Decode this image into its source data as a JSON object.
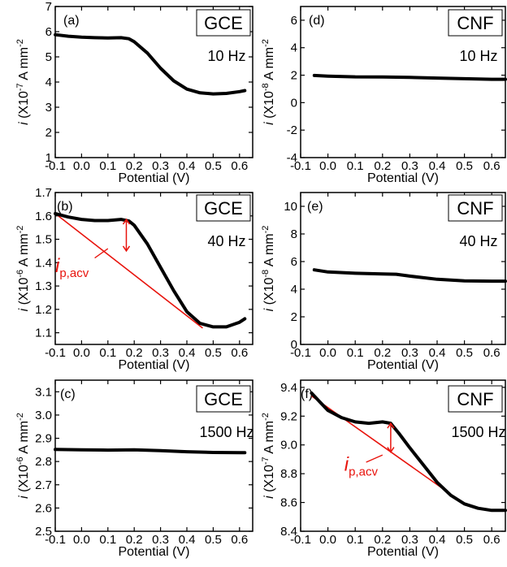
{
  "figure": {
    "colors": {
      "data": "#000000",
      "annotation": "#e8130c",
      "axis": "#000000"
    }
  },
  "chart_data": [
    {
      "id": "a",
      "type": "line",
      "letter": "(a)",
      "electrode": "GCE",
      "frequency": "10 Hz",
      "xlabel": "Potential (V)",
      "ylabel_prefix": "i",
      "ylabel_rest": " (X10",
      "ylabel_exp": "-7",
      "ylabel_unit": " A mm",
      "ylabel_unit_exp": "-2",
      "xlim": [
        -0.1,
        0.65
      ],
      "ylim": [
        1,
        7
      ],
      "xticks": [
        "-0.1",
        "0.0",
        "0.1",
        "0.2",
        "0.3",
        "0.4",
        "0.5",
        "0.6"
      ],
      "xtick_values": [
        -0.1,
        0.0,
        0.1,
        0.2,
        0.3,
        0.4,
        0.5,
        0.6
      ],
      "yticks": [
        "1",
        "2",
        "3",
        "4",
        "5",
        "6",
        "7"
      ],
      "ytick_values": [
        1,
        2,
        3,
        4,
        5,
        6,
        7
      ],
      "series": [
        {
          "x": [
            -0.1,
            -0.05,
            0.0,
            0.05,
            0.1,
            0.15,
            0.18,
            0.2,
            0.25,
            0.3,
            0.35,
            0.4,
            0.45,
            0.5,
            0.55,
            0.6,
            0.62
          ],
          "y": [
            5.88,
            5.82,
            5.78,
            5.76,
            5.75,
            5.76,
            5.72,
            5.6,
            5.15,
            4.55,
            4.05,
            3.72,
            3.57,
            3.53,
            3.55,
            3.62,
            3.66
          ]
        }
      ]
    },
    {
      "id": "b",
      "type": "line",
      "letter": "(b)",
      "electrode": "GCE",
      "frequency": "40 Hz",
      "xlabel": "Potential (V)",
      "ylabel_prefix": "i",
      "ylabel_rest": " (X10",
      "ylabel_exp": "-6",
      "ylabel_unit": " A mm",
      "ylabel_unit_exp": "-2",
      "xlim": [
        -0.1,
        0.65
      ],
      "ylim": [
        1.05,
        1.7
      ],
      "xticks": [
        "-0.1",
        "0.0",
        "0.1",
        "0.2",
        "0.3",
        "0.4",
        "0.5",
        "0.6"
      ],
      "xtick_values": [
        -0.1,
        0.0,
        0.1,
        0.2,
        0.3,
        0.4,
        0.5,
        0.6
      ],
      "yticks": [
        "1.1",
        "1.2",
        "1.3",
        "1.4",
        "1.5",
        "1.6",
        "1.7"
      ],
      "ytick_values": [
        1.1,
        1.2,
        1.3,
        1.4,
        1.5,
        1.6,
        1.7
      ],
      "series": [
        {
          "x": [
            -0.1,
            -0.05,
            0.0,
            0.05,
            0.1,
            0.15,
            0.18,
            0.2,
            0.25,
            0.3,
            0.35,
            0.4,
            0.45,
            0.5,
            0.55,
            0.6,
            0.62
          ],
          "y": [
            1.61,
            1.595,
            1.585,
            1.58,
            1.58,
            1.585,
            1.578,
            1.56,
            1.48,
            1.38,
            1.28,
            1.19,
            1.14,
            1.125,
            1.125,
            1.145,
            1.16
          ]
        }
      ],
      "baseline": {
        "x": [
          -0.1,
          0.46
        ],
        "y": [
          1.61,
          1.12
        ]
      },
      "peak_arrow": {
        "x": 0.17,
        "y_from": 1.585,
        "y_to": 1.45
      },
      "label_pointer": {
        "x": [
          0.05,
          0.1
        ],
        "y": [
          1.42,
          1.46
        ]
      },
      "annotation": {
        "main": "i",
        "sub": "p,acv",
        "x": -0.1,
        "y": 1.36
      }
    },
    {
      "id": "c",
      "type": "line",
      "letter": "(c)",
      "electrode": "GCE",
      "frequency": "1500 Hz",
      "xlabel": "Potential (V)",
      "ylabel_prefix": "i",
      "ylabel_rest": " (X10",
      "ylabel_exp": "-6",
      "ylabel_unit": " A mm",
      "ylabel_unit_exp": "-2",
      "xlim": [
        -0.1,
        0.65
      ],
      "ylim": [
        2.5,
        3.15
      ],
      "xticks": [
        "-0.1",
        "0.0",
        "0.1",
        "0.2",
        "0.3",
        "0.4",
        "0.5",
        "0.6"
      ],
      "xtick_values": [
        -0.1,
        0.0,
        0.1,
        0.2,
        0.3,
        0.4,
        0.5,
        0.6
      ],
      "yticks": [
        "2.5",
        "2.6",
        "2.7",
        "2.8",
        "2.9",
        "3.0",
        "3.1"
      ],
      "ytick_values": [
        2.5,
        2.6,
        2.7,
        2.8,
        2.9,
        3.0,
        3.1
      ],
      "series": [
        {
          "x": [
            -0.1,
            0.0,
            0.1,
            0.2,
            0.3,
            0.4,
            0.5,
            0.6,
            0.62
          ],
          "y": [
            2.852,
            2.85,
            2.849,
            2.85,
            2.847,
            2.842,
            2.839,
            2.838,
            2.838
          ]
        }
      ]
    },
    {
      "id": "d",
      "type": "line",
      "letter": "(d)",
      "electrode": "CNF",
      "frequency": "10 Hz",
      "xlabel": "Potential (V)",
      "ylabel_prefix": "i",
      "ylabel_rest": " (X10",
      "ylabel_exp": "-8",
      "ylabel_unit": " A mm",
      "ylabel_unit_exp": "-2",
      "xlim": [
        -0.1,
        0.65
      ],
      "ylim": [
        -4,
        7
      ],
      "xticks": [
        "-0.1",
        "0.0",
        "0.1",
        "0.2",
        "0.3",
        "0.4",
        "0.5",
        "0.6"
      ],
      "xtick_values": [
        -0.1,
        0.0,
        0.1,
        0.2,
        0.3,
        0.4,
        0.5,
        0.6
      ],
      "yticks": [
        "-4",
        "-2",
        "0",
        "2",
        "4",
        "6"
      ],
      "ytick_values": [
        -4,
        -2,
        0,
        2,
        4,
        6
      ],
      "series": [
        {
          "x": [
            -0.05,
            0.0,
            0.1,
            0.2,
            0.3,
            0.4,
            0.5,
            0.6,
            0.65
          ],
          "y": [
            1.98,
            1.93,
            1.88,
            1.87,
            1.84,
            1.79,
            1.74,
            1.7,
            1.7
          ]
        }
      ]
    },
    {
      "id": "e",
      "type": "line",
      "letter": "(e)",
      "electrode": "CNF",
      "frequency": "40 Hz",
      "xlabel": "Potential (V)",
      "ylabel_prefix": "i",
      "ylabel_rest": " (X10",
      "ylabel_exp": "-8",
      "ylabel_unit": " A mm",
      "ylabel_unit_exp": "-2",
      "xlim": [
        -0.1,
        0.65
      ],
      "ylim": [
        0,
        11
      ],
      "xticks": [
        "-0.1",
        "0.0",
        "0.1",
        "0.2",
        "0.3",
        "0.4",
        "0.5",
        "0.6"
      ],
      "xtick_values": [
        -0.1,
        0.0,
        0.1,
        0.2,
        0.3,
        0.4,
        0.5,
        0.6
      ],
      "yticks": [
        "0",
        "2",
        "4",
        "6",
        "8",
        "10"
      ],
      "ytick_values": [
        0,
        2,
        4,
        6,
        8,
        10
      ],
      "series": [
        {
          "x": [
            -0.05,
            0.0,
            0.1,
            0.2,
            0.25,
            0.3,
            0.4,
            0.5,
            0.6,
            0.65
          ],
          "y": [
            5.4,
            5.25,
            5.15,
            5.1,
            5.08,
            4.95,
            4.72,
            4.6,
            4.58,
            4.58
          ]
        }
      ]
    },
    {
      "id": "f",
      "type": "line",
      "letter": "(f)",
      "electrode": "CNF",
      "frequency": "1500 Hz",
      "xlabel": "Potential (V)",
      "ylabel_prefix": "i",
      "ylabel_rest": " (X10",
      "ylabel_exp": "-7",
      "ylabel_unit": " A mm",
      "ylabel_unit_exp": "-2",
      "xlim": [
        -0.1,
        0.65
      ],
      "ylim": [
        8.4,
        9.45
      ],
      "xticks": [
        "-0.1",
        "0.0",
        "0.1",
        "0.2",
        "0.3",
        "0.4",
        "0.5",
        "0.6"
      ],
      "xtick_values": [
        -0.1,
        0.0,
        0.1,
        0.2,
        0.3,
        0.4,
        0.5,
        0.6
      ],
      "yticks": [
        "8.4",
        "8.6",
        "8.8",
        "9.0",
        "9.2",
        "9.4"
      ],
      "ytick_values": [
        8.4,
        8.6,
        8.8,
        9.0,
        9.2,
        9.4
      ],
      "series": [
        {
          "x": [
            -0.06,
            -0.03,
            0.0,
            0.05,
            0.1,
            0.15,
            0.2,
            0.23,
            0.26,
            0.3,
            0.35,
            0.4,
            0.45,
            0.5,
            0.55,
            0.6,
            0.65
          ],
          "y": [
            9.36,
            9.3,
            9.24,
            9.19,
            9.16,
            9.15,
            9.16,
            9.15,
            9.08,
            8.98,
            8.86,
            8.74,
            8.65,
            8.59,
            8.56,
            8.545,
            8.545
          ]
        }
      ],
      "baseline": {
        "x": [
          -0.06,
          0.5
        ],
        "y": [
          9.34,
          8.59
        ]
      },
      "peak_arrow": {
        "x": 0.23,
        "y_from": 9.15,
        "y_to": 8.95
      },
      "label_pointer": {
        "x": [
          0.14,
          0.2
        ],
        "y": [
          8.88,
          8.93
        ]
      },
      "annotation": {
        "main": "i",
        "sub": "p,acv",
        "x": 0.06,
        "y": 8.82
      }
    }
  ]
}
